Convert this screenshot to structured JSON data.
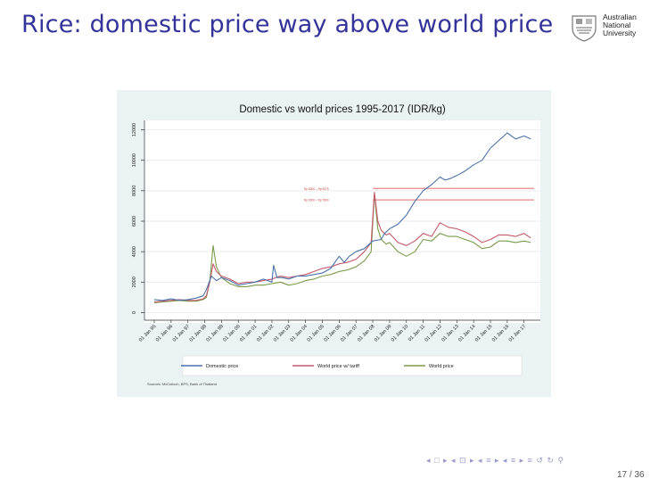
{
  "slide": {
    "title": "Rice: domestic price way above world price",
    "page": "17 / 36"
  },
  "logo": {
    "line1": "Australian",
    "line2": "National",
    "line3": "University"
  },
  "nav_symbols": "◂ □ ▸ ◂ ⊡ ▸ ◂ ≡ ▸ ◂ ≡ ▸   ≡   ↺ ↻ ⚲",
  "chart_data": {
    "type": "line",
    "title": "Domestic vs world prices 1995-2017 (IDR/kg)",
    "source": "Sources: McCulloch, BPS, Bank of Thailand",
    "x_tick_labels": [
      "01 Jan 95",
      "01 Jan 96",
      "01 Jan 97",
      "01 Jan 98",
      "01 Jan 99",
      "01 Jan 00",
      "01 Jan 01",
      "01 Jan 02",
      "01 Jan 03",
      "01 Jan 04",
      "01 Jan 05",
      "01 Jan 06",
      "01 Jan 07",
      "01 Jan 08",
      "01 Jan 09",
      "01 Jan 10",
      "01 Jan 11",
      "01 Jan 12",
      "01 Jan 13",
      "01 Jan 14",
      "01 Jan 15",
      "01 Jan 16",
      "01 Jan 17"
    ],
    "y_ticks": [
      0,
      2000,
      4000,
      6000,
      8000,
      10000,
      12000
    ],
    "ylim": [
      -500,
      12500
    ],
    "xlim": [
      1995.0,
      2017.6
    ],
    "grid": true,
    "legend_position": "bottom",
    "reference_lines": [
      {
        "label": "Rp 8300 – Rp 8375",
        "value": 8150
      },
      {
        "label": "Rp 9000 – Rp 7800",
        "value": 7400
      }
    ],
    "series": [
      {
        "name": "Domestic price",
        "color": "#4a72a8",
        "x": [
          1995.0,
          1995.5,
          1996.0,
          1996.5,
          1997.0,
          1997.5,
          1997.9,
          1998.1,
          1998.4,
          1998.7,
          1999.0,
          1999.5,
          2000.0,
          2000.5,
          2001.0,
          2001.5,
          2002.0,
          2002.1,
          2002.3,
          2002.6,
          2003.0,
          2003.5,
          2004.0,
          2004.5,
          2005.0,
          2005.5,
          2006.0,
          2006.3,
          2006.6,
          2007.0,
          2007.5,
          2008.0,
          2008.5,
          2008.7,
          2009.0,
          2009.5,
          2010.0,
          2010.5,
          2011.0,
          2011.5,
          2012.0,
          2012.3,
          2012.6,
          2013.0,
          2013.5,
          2014.0,
          2014.5,
          2015.0,
          2015.5,
          2016.0,
          2016.5,
          2017.0,
          2017.4
        ],
        "y": [
          850,
          800,
          900,
          800,
          850,
          950,
          1100,
          1500,
          2400,
          2100,
          2300,
          2100,
          1800,
          1900,
          2000,
          2200,
          2000,
          3100,
          2300,
          2300,
          2200,
          2400,
          2400,
          2500,
          2600,
          2900,
          3700,
          3300,
          3700,
          4000,
          4200,
          4700,
          4800,
          5200,
          5500,
          5800,
          6400,
          7300,
          8000,
          8400,
          8900,
          8700,
          8800,
          9000,
          9300,
          9700,
          10000,
          10800,
          11300,
          11800,
          11400,
          11600,
          11400
        ]
      },
      {
        "name": "World price w/ tariff",
        "color": "#c25a6b",
        "x": [
          1995.0,
          1995.5,
          1996.0,
          1996.5,
          1997.0,
          1997.5,
          1997.9,
          1998.1,
          1998.3,
          1998.5,
          1998.7,
          1999.0,
          1999.5,
          2000.0,
          2000.5,
          2001.0,
          2001.5,
          2002.0,
          2002.5,
          2003.0,
          2003.5,
          2004.0,
          2004.5,
          2005.0,
          2005.5,
          2006.0,
          2006.5,
          2007.0,
          2007.5,
          2007.9,
          2008.1,
          2008.3,
          2008.5,
          2008.8,
          2009.0,
          2009.5,
          2010.0,
          2010.5,
          2011.0,
          2011.5,
          2012.0,
          2012.5,
          2013.0,
          2013.5,
          2014.0,
          2014.5,
          2015.0,
          2015.5,
          2016.0,
          2016.5,
          2017.0,
          2017.4
        ],
        "y": [
          700,
          750,
          800,
          850,
          800,
          800,
          900,
          1100,
          2000,
          3200,
          2700,
          2400,
          2200,
          1900,
          2000,
          2000,
          2100,
          2200,
          2400,
          2300,
          2400,
          2500,
          2700,
          2900,
          3000,
          3200,
          3300,
          3500,
          4000,
          4600,
          7900,
          6000,
          5400,
          5100,
          5200,
          4600,
          4400,
          4700,
          5200,
          5000,
          5900,
          5600,
          5500,
          5300,
          5000,
          4600,
          4800,
          5100,
          5100,
          5000,
          5200,
          4900
        ]
      },
      {
        "name": "World price",
        "color": "#7a9a4a",
        "x": [
          1995.0,
          1995.5,
          1996.0,
          1996.5,
          1997.0,
          1997.5,
          1997.9,
          1998.1,
          1998.3,
          1998.5,
          1998.7,
          1999.0,
          1999.5,
          2000.0,
          2000.5,
          2001.0,
          2001.5,
          2002.0,
          2002.5,
          2003.0,
          2003.5,
          2004.0,
          2004.5,
          2005.0,
          2005.5,
          2006.0,
          2006.5,
          2007.0,
          2007.5,
          2007.9,
          2008.1,
          2008.3,
          2008.5,
          2008.8,
          2009.0,
          2009.5,
          2010.0,
          2010.5,
          2011.0,
          2011.5,
          2012.0,
          2012.5,
          2013.0,
          2013.5,
          2014.0,
          2014.5,
          2015.0,
          2015.5,
          2016.0,
          2016.5,
          2017.0,
          2017.4
        ],
        "y": [
          650,
          700,
          750,
          800,
          750,
          750,
          850,
          1000,
          2000,
          4400,
          3000,
          2300,
          1900,
          1700,
          1700,
          1800,
          1800,
          1900,
          2000,
          1800,
          1900,
          2100,
          2200,
          2400,
          2500,
          2700,
          2800,
          3000,
          3400,
          4000,
          7800,
          5500,
          4800,
          4500,
          4600,
          4000,
          3700,
          4000,
          4800,
          4700,
          5200,
          5000,
          5000,
          4800,
          4600,
          4200,
          4300,
          4700,
          4700,
          4600,
          4700,
          4600
        ]
      }
    ]
  }
}
